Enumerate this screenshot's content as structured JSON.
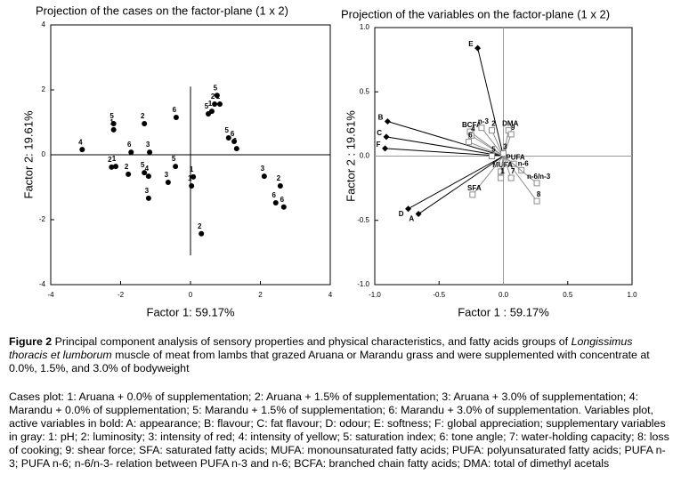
{
  "chart_data": [
    {
      "type": "scatter",
      "title": "Projection of the cases on the factor-plane (1 x 2)",
      "xlabel": "Factor 1: 59.17%",
      "ylabel": "Factor 2: 19.61%",
      "xlim": [
        -4,
        4
      ],
      "ylim": [
        -4,
        4
      ],
      "xticks": [
        -4,
        -2,
        0,
        2,
        4
      ],
      "yticks": [
        -4,
        -2,
        0,
        2,
        4
      ],
      "color": "#000000",
      "x": [
        -3.1,
        -2.2,
        -2.2,
        -1.32,
        -0.41,
        -1.7,
        -1.17,
        -2.26,
        -2.14,
        -1.78,
        -1.32,
        -1.2,
        -1.2,
        -0.64,
        -0.43,
        0.08,
        0.03,
        0.31,
        0.76,
        0.69,
        0.84,
        0.51,
        0.61,
        1.09,
        1.25,
        1.32,
        2.11,
        2.57,
        2.44,
        2.67
      ],
      "values": [
        0.16,
        0.96,
        0.77,
        0.96,
        1.15,
        0.08,
        0.08,
        -0.38,
        -0.36,
        -0.6,
        -0.55,
        -0.66,
        -1.34,
        -0.85,
        -0.36,
        -0.68,
        -0.96,
        -2.43,
        1.83,
        1.56,
        1.56,
        1.26,
        1.34,
        0.52,
        0.41,
        0.19,
        -0.66,
        -0.96,
        -1.48,
        -1.61
      ],
      "point_labels": [
        "4",
        "5",
        "1",
        "2",
        "6",
        "6",
        "3",
        "2",
        "1",
        "2",
        "5",
        "4",
        "3",
        "3",
        "5",
        "1",
        "1",
        "2",
        "5",
        "2",
        "1",
        "5",
        "1",
        "5",
        "6",
        "6",
        "3",
        "2",
        "6",
        "6"
      ]
    },
    {
      "type": "vectors",
      "title": "Projection of the variables on the factor-plane (1 x 2)",
      "xlabel": "Factor 1 : 59.17%",
      "ylabel": "Factor 2 : 19.61%",
      "xlim": [
        -1,
        1
      ],
      "ylim": [
        -1,
        1
      ],
      "xticks": [
        {
          "value": -1,
          "label": "-1.0"
        },
        -0.5,
        {
          "value": 0,
          "label": "0.0"
        },
        0.5,
        {
          "value": 1,
          "label": "1.0"
        }
      ],
      "yticks": [
        {
          "value": -1,
          "label": "-1.0"
        },
        -0.5,
        {
          "value": 0,
          "label": "0.0"
        },
        0.5,
        {
          "value": 1,
          "label": "1.0"
        }
      ],
      "series": [
        {
          "color": "#000000",
          "marker": "diamond",
          "font_weight": "bold",
          "x": [
            -0.2,
            -0.9,
            -0.91,
            -0.92,
            -0.74,
            -0.66
          ],
          "values": [
            0.84,
            0.27,
            0.15,
            0.06,
            -0.41,
            -0.45
          ],
          "point_labels": [
            "E",
            "B",
            "C",
            "F",
            "D",
            "A"
          ]
        },
        {
          "color": "#8c8c8c",
          "marker": "square",
          "font_weight": "bold",
          "x": [
            -0.26,
            -0.17,
            -0.09,
            0.04,
            0.06,
            -0.25,
            -0.27,
            -0.09,
            0.0,
            0.08,
            0.14,
            0.26,
            0.26,
            -0.02,
            -0.02,
            0.06,
            -0.24
          ],
          "values": [
            0.19,
            0.22,
            0.2,
            0.2,
            0.17,
            0.16,
            0.11,
            0.0,
            0.02,
            -0.06,
            -0.11,
            -0.21,
            -0.35,
            -0.12,
            -0.17,
            -0.17,
            -0.3
          ],
          "point_labels": [
            "BCFA",
            "n-3",
            "2",
            "DMA",
            "9",
            "4",
            "6",
            "5",
            "3",
            "PUFA",
            "n-6",
            "n-6/n-3",
            "8",
            "MUFA",
            "1",
            "7",
            "SFA"
          ]
        }
      ]
    }
  ],
  "caption": {
    "label": "Figure 2",
    "text_before": "Principal component analysis of sensory properties and physical characteristics, and fatty acids groups of",
    "italic": "Longissimus thoracis et lumborum",
    "text_after": "muscle of meat from lambs that grazed Aruana or Marandu grass and were supplemented with concentrate at 0.0%, 1.5%, and 3.0% of bodyweight",
    "legend": "Cases plot: 1: Aruana + 0.0% of supplementation; 2: Aruana + 1.5% of supplementation; 3: Aruana + 3.0% of supplementation; 4: Marandu + 0.0% of supplementation; 5: Marandu + 1.5% of supplementation; 6: Marandu + 3.0% of supplementation. Variables plot, active variables in bold: A: appearance; B: flavour; C: fat flavour; D: odour; E: softness; F: global appreciation; supplementary variables in gray: 1: pH; 2: luminosity; 3: intensity of red; 4: intensity of yellow; 5: saturation index; 6: tone angle; 7: water-holding capacity; 8: loss of cooking; 9: shear force; SFA: saturated fatty acids; MUFA: monounsaturated fatty acids; PUFA: polyunsaturated fatty acids; PUFA n-3; PUFA n-6; n-6/n-3- relation between PUFA n-3 and n-6; BCFA: branched chain fatty acids; DMA: total of dimethyl acetals"
  }
}
